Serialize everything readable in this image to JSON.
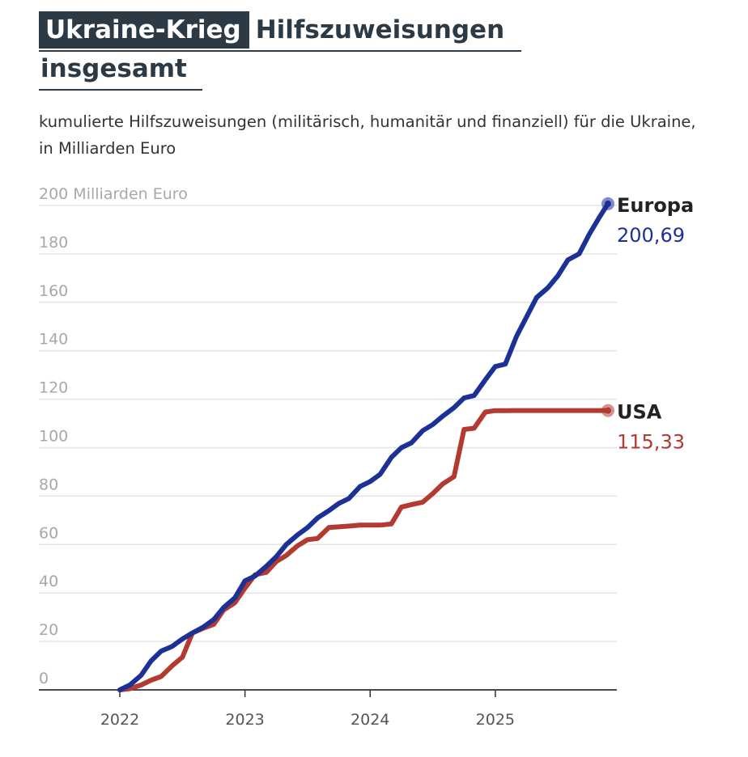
{
  "header": {
    "kicker": "Ukraine-Krieg",
    "title_line1": "Hilfszuweisungen",
    "title_line2": "insgesamt",
    "subtitle": "kumulierte Hilfszuweisungen (militärisch, humanitär und finanziell) für die Ukraine, in Milliarden Euro"
  },
  "colors": {
    "headline": "#2b3a45",
    "europa": "#1b3196",
    "usa": "#b23a30",
    "grid": "#e4e4e4",
    "axis": "#333333"
  },
  "chart_data": {
    "type": "line",
    "title": "Hilfszuweisungen insgesamt",
    "subtitle": "kumulierte Hilfszuweisungen (militärisch, humanitär und finanziell) für die Ukraine, in Milliarden Euro",
    "ylabel": "200 Milliarden Euro",
    "ylim": [
      0,
      200
    ],
    "xlim": [
      2022.0,
      2025.9
    ],
    "y_ticks": [
      0,
      20,
      40,
      60,
      80,
      100,
      120,
      140,
      160,
      180,
      200
    ],
    "y_tick_labels": [
      "0",
      "20",
      "40",
      "60",
      "80",
      "100",
      "120",
      "140",
      "160",
      "180",
      "200 Milliarden Euro"
    ],
    "x_ticks": [
      2022,
      2023,
      2024,
      2025
    ],
    "x_tick_labels": [
      "2022",
      "2023",
      "2024",
      "2025"
    ],
    "grid": true,
    "series": [
      {
        "name": "Europa",
        "end_label": "200,69",
        "points": [
          [
            2022.0,
            0
          ],
          [
            2022.08,
            2
          ],
          [
            2022.17,
            6
          ],
          [
            2022.25,
            12
          ],
          [
            2022.33,
            16
          ],
          [
            2022.42,
            18
          ],
          [
            2022.5,
            21
          ],
          [
            2022.58,
            23.5
          ],
          [
            2022.67,
            26
          ],
          [
            2022.75,
            29
          ],
          [
            2022.83,
            34
          ],
          [
            2022.92,
            38
          ],
          [
            2023.0,
            45
          ],
          [
            2023.08,
            47
          ],
          [
            2023.17,
            51
          ],
          [
            2023.25,
            55
          ],
          [
            2023.33,
            60
          ],
          [
            2023.42,
            64
          ],
          [
            2023.5,
            67
          ],
          [
            2023.58,
            71
          ],
          [
            2023.67,
            74
          ],
          [
            2023.75,
            77
          ],
          [
            2023.83,
            79
          ],
          [
            2023.92,
            84
          ],
          [
            2024.0,
            86
          ],
          [
            2024.08,
            89
          ],
          [
            2024.17,
            96
          ],
          [
            2024.25,
            100
          ],
          [
            2024.33,
            102
          ],
          [
            2024.42,
            107
          ],
          [
            2024.5,
            109.5
          ],
          [
            2024.58,
            113
          ],
          [
            2024.67,
            116.5
          ],
          [
            2024.75,
            120.5
          ],
          [
            2024.83,
            121.5
          ],
          [
            2024.92,
            128
          ],
          [
            2025.0,
            133.5
          ],
          [
            2025.08,
            134.5
          ],
          [
            2025.17,
            146
          ],
          [
            2025.25,
            154
          ],
          [
            2025.33,
            162
          ],
          [
            2025.42,
            166
          ],
          [
            2025.5,
            171
          ],
          [
            2025.58,
            177.5
          ],
          [
            2025.67,
            180
          ],
          [
            2025.75,
            188
          ],
          [
            2025.83,
            195
          ],
          [
            2025.9,
            200.69
          ]
        ]
      },
      {
        "name": "USA",
        "end_label": "115,33",
        "points": [
          [
            2022.0,
            0
          ],
          [
            2022.08,
            0.5
          ],
          [
            2022.17,
            2
          ],
          [
            2022.25,
            4
          ],
          [
            2022.33,
            5.5
          ],
          [
            2022.42,
            10
          ],
          [
            2022.5,
            13.5
          ],
          [
            2022.58,
            23.5
          ],
          [
            2022.67,
            25.5
          ],
          [
            2022.75,
            27
          ],
          [
            2022.83,
            33
          ],
          [
            2022.92,
            36
          ],
          [
            2023.0,
            42
          ],
          [
            2023.08,
            47.5
          ],
          [
            2023.17,
            48.5
          ],
          [
            2023.25,
            53
          ],
          [
            2023.33,
            55.5
          ],
          [
            2023.42,
            59.5
          ],
          [
            2023.5,
            62
          ],
          [
            2023.58,
            62.5
          ],
          [
            2023.67,
            67
          ],
          [
            2023.75,
            67.3
          ],
          [
            2023.83,
            67.6
          ],
          [
            2023.92,
            68
          ],
          [
            2024.0,
            68
          ],
          [
            2024.08,
            68
          ],
          [
            2024.17,
            68.5
          ],
          [
            2024.25,
            75.5
          ],
          [
            2024.33,
            76.5
          ],
          [
            2024.42,
            77.5
          ],
          [
            2024.5,
            81
          ],
          [
            2024.58,
            85
          ],
          [
            2024.67,
            88
          ],
          [
            2024.75,
            107.5
          ],
          [
            2024.83,
            108
          ],
          [
            2024.92,
            114.7
          ],
          [
            2025.0,
            115.3
          ],
          [
            2025.08,
            115.3
          ],
          [
            2025.5,
            115.33
          ],
          [
            2025.9,
            115.33
          ]
        ]
      }
    ]
  }
}
